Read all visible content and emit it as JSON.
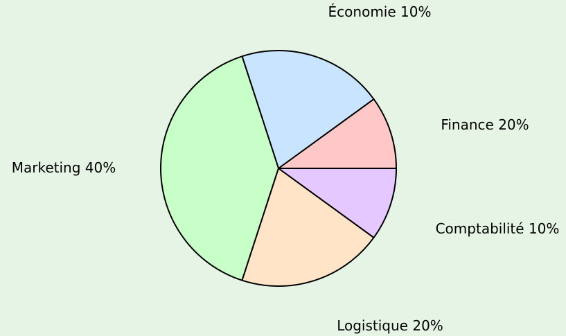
{
  "chart_data": {
    "type": "pie",
    "categories": [
      "Économie",
      "Finance",
      "Marketing",
      "Logistique",
      "Comptabilité"
    ],
    "values": [
      10,
      20,
      40,
      20,
      10
    ],
    "value_labels": [
      "10%",
      "20%",
      "40%",
      "20%",
      "10%"
    ],
    "colors": [
      "#ffc8c8",
      "#c8e4ff",
      "#c8ffc8",
      "#ffe4c8",
      "#e4c8ff"
    ]
  }
}
